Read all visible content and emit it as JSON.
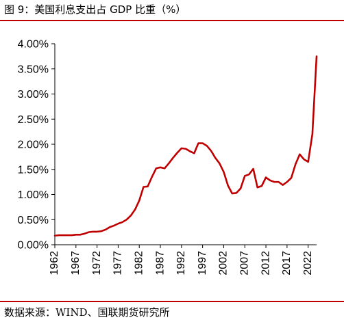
{
  "title": "图 9：美国利息支出占 GDP 比重（%）",
  "source": "数据来源：WIND、国联期货研究所",
  "colors": {
    "accent_rule": "#c00000",
    "line": "#c00000",
    "axis": "#000000"
  },
  "chart_data": {
    "type": "line",
    "title": "",
    "xlabel": "",
    "ylabel": "",
    "xlim": [
      1962,
      2024
    ],
    "ylim": [
      0,
      4
    ],
    "y_tick_labels": [
      "0.00%",
      "0.50%",
      "1.00%",
      "1.50%",
      "2.00%",
      "2.50%",
      "3.00%",
      "3.50%",
      "4.00%"
    ],
    "x_tick_labels": [
      "1962",
      "1967",
      "1972",
      "1977",
      "1982",
      "1987",
      "1992",
      "1997",
      "2002",
      "2007",
      "2012",
      "2017",
      "2022"
    ],
    "grid": false,
    "legend": "none",
    "series": [
      {
        "name": "",
        "x": [
          1962,
          1963,
          1964,
          1965,
          1966,
          1967,
          1968,
          1969,
          1970,
          1971,
          1972,
          1973,
          1974,
          1975,
          1976,
          1977,
          1978,
          1979,
          1980,
          1981,
          1982,
          1983,
          1984,
          1985,
          1986,
          1987,
          1988,
          1989,
          1990,
          1991,
          1992,
          1993,
          1994,
          1995,
          1996,
          1997,
          1998,
          1999,
          2000,
          2001,
          2002,
          2003,
          2004,
          2005,
          2006,
          2007,
          2008,
          2009,
          2010,
          2011,
          2012,
          2013,
          2014,
          2015,
          2016,
          2017,
          2018,
          2019,
          2020,
          2021,
          2022,
          2023,
          2024
        ],
        "y": [
          0.18,
          0.19,
          0.19,
          0.19,
          0.19,
          0.2,
          0.2,
          0.22,
          0.25,
          0.26,
          0.26,
          0.27,
          0.3,
          0.35,
          0.38,
          0.42,
          0.45,
          0.5,
          0.58,
          0.7,
          0.88,
          1.15,
          1.16,
          1.35,
          1.52,
          1.54,
          1.52,
          1.62,
          1.73,
          1.83,
          1.92,
          1.91,
          1.86,
          1.82,
          2.02,
          2.02,
          1.97,
          1.87,
          1.73,
          1.62,
          1.45,
          1.18,
          1.02,
          1.03,
          1.12,
          1.37,
          1.4,
          1.51,
          1.14,
          1.17,
          1.34,
          1.28,
          1.25,
          1.25,
          1.19,
          1.25,
          1.33,
          1.6,
          1.8,
          1.7,
          1.65,
          2.2,
          3.75
        ]
      }
    ]
  }
}
